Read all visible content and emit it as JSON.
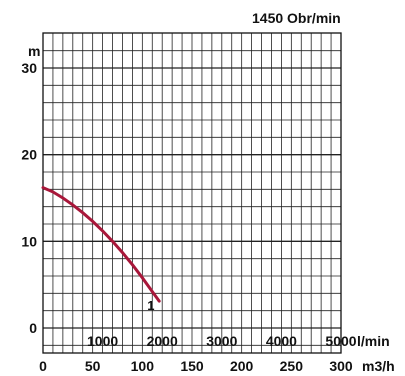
{
  "chart_data": {
    "type": "line",
    "title": "1450 Obr/min",
    "ylabel": "m",
    "xlabel_top": "l/min",
    "xlabel_bottom": "m3/h",
    "ylim": [
      0,
      32
    ],
    "y_ticks": [
      0,
      10,
      20,
      30
    ],
    "x_lpm_range": [
      0,
      5000
    ],
    "x_lpm_ticks": [
      1000,
      2000,
      3000,
      4000,
      5000
    ],
    "x_m3h_range": [
      0,
      300
    ],
    "x_m3h_ticks": [
      0,
      50,
      100,
      150,
      200,
      250,
      300
    ],
    "grid": true,
    "series": [
      {
        "name": "1",
        "color": "#a8173a",
        "x_m3h": [
          0,
          10,
          20,
          30,
          40,
          50,
          60,
          70,
          80,
          90,
          100,
          110,
          117
        ],
        "y_m": [
          16.2,
          15.7,
          15.0,
          14.2,
          13.3,
          12.3,
          11.2,
          10.0,
          8.7,
          7.3,
          5.8,
          4.2,
          3.1
        ]
      }
    ]
  }
}
